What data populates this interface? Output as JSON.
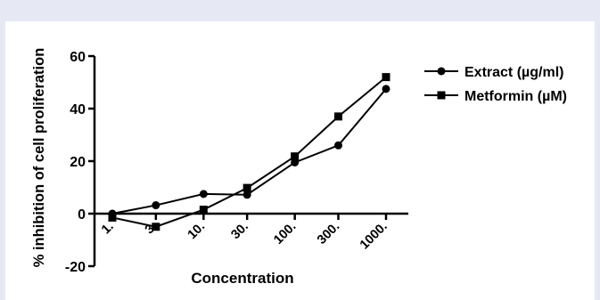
{
  "chart_data": {
    "type": "line",
    "x_scale": "log",
    "categories": [
      "1.",
      "3.",
      "10.",
      "30.",
      "100.",
      "300.",
      "1000."
    ],
    "x": [
      1,
      3,
      10,
      30,
      100,
      300,
      1000
    ],
    "xlabel": "Concentration",
    "ylabel": "% inhibition of cell proliferation",
    "ylim": [
      -20,
      60
    ],
    "yticks": [
      "-20",
      "0",
      "20",
      "40",
      "60"
    ],
    "grid": false,
    "legend_position": "top-right",
    "series": [
      {
        "name": "Extract (µg/ml)",
        "marker": "circle",
        "color": "#000000",
        "values": [
          0,
          3.2,
          7.5,
          7.2,
          19.5,
          26,
          47.5
        ]
      },
      {
        "name": "Metformin (µM)",
        "marker": "square",
        "color": "#000000",
        "values": [
          -1.5,
          -5,
          1.5,
          9.8,
          21.8,
          37,
          52
        ]
      }
    ]
  }
}
